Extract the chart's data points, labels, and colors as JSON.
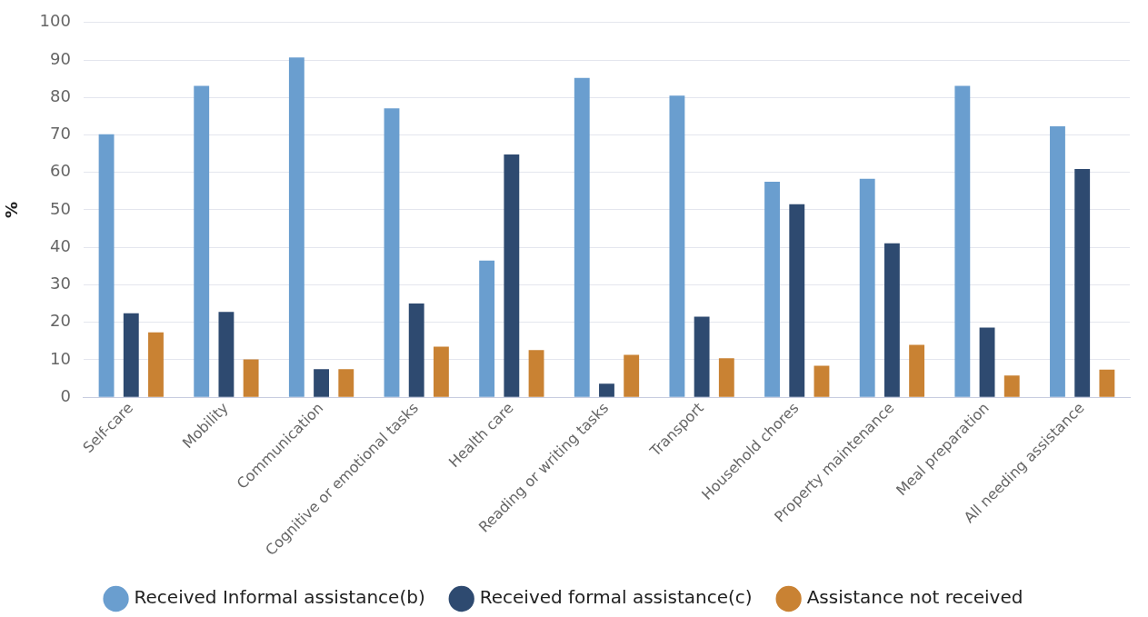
{
  "chart_data": {
    "type": "bar",
    "ylabel": "%",
    "categories": [
      "Self-care",
      "Mobility",
      "Communication",
      "Cognitive or emotional tasks",
      "Health care",
      "Reading or writing tasks",
      "Transport",
      "Household chores",
      "Property maintenance",
      "Meal preparation",
      "All needing assistance"
    ],
    "series": [
      {
        "name": "Received Informal assistance(b)",
        "color": "#6a9ecf",
        "values": [
          70.2,
          83.1,
          90.7,
          77.1,
          36.5,
          85.2,
          80.5,
          57.5,
          58.3,
          83.1,
          72.3
        ]
      },
      {
        "name": "Received formal assistance(c)",
        "color": "#2e4a70",
        "values": [
          22.4,
          22.8,
          7.5,
          25.0,
          64.8,
          3.6,
          21.5,
          51.5,
          41.1,
          18.6,
          60.9
        ]
      },
      {
        "name": "Assistance not received",
        "color": "#c98233",
        "values": [
          17.3,
          10.1,
          7.5,
          13.5,
          12.6,
          11.3,
          10.4,
          8.4,
          14.0,
          5.8,
          7.4
        ]
      }
    ],
    "ylim": [
      0,
      100
    ],
    "yticks": [
      0,
      10,
      20,
      30,
      40,
      50,
      60,
      70,
      80,
      90,
      100
    ],
    "grid": "y",
    "legend": "bottom"
  }
}
